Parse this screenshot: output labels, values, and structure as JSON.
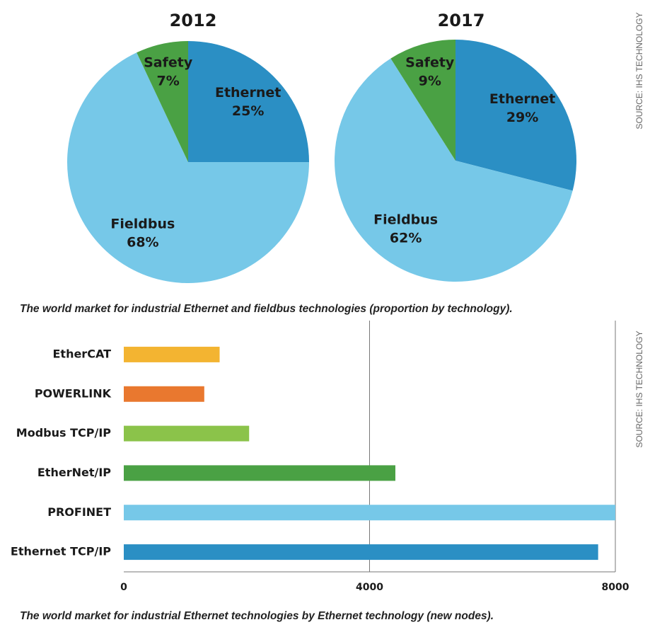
{
  "chart_data": [
    {
      "type": "pie",
      "title": "2012",
      "categories": [
        "Ethernet",
        "Fieldbus",
        "Safety"
      ],
      "values": [
        25,
        68,
        7
      ],
      "value_labels": [
        "25%",
        "68%",
        "7%"
      ],
      "colors": [
        "#2b8fc4",
        "#76c8e8",
        "#4aa144"
      ]
    },
    {
      "type": "pie",
      "title": "2017",
      "categories": [
        "Ethernet",
        "Fieldbus",
        "Safety"
      ],
      "values": [
        29,
        62,
        9
      ],
      "value_labels": [
        "29%",
        "62%",
        "9%"
      ],
      "colors": [
        "#2b8fc4",
        "#76c8e8",
        "#4aa144"
      ],
      "caption": "The world market for industrial Ethernet and fieldbus technologies (proportion by technology).",
      "source": "SOURCE: IHS TECHNOLOGY"
    },
    {
      "type": "bar",
      "orientation": "horizontal",
      "categories": [
        "EtherCAT",
        "POWERLINK",
        "Modbus TCP/IP",
        "EtherNet/IP",
        "PROFINET",
        "Ethernet TCP/IP"
      ],
      "values": [
        1560,
        1310,
        2040,
        4420,
        8000,
        7720
      ],
      "colors": [
        "#f3b431",
        "#e9782f",
        "#8bc34a",
        "#4aa144",
        "#76c8e8",
        "#2b8fc4"
      ],
      "xlim": [
        0,
        8000
      ],
      "xticks": [
        0,
        4000,
        8000
      ],
      "grid": true,
      "caption": "The world market for industrial Ethernet technologies by Ethernet technology (new nodes).",
      "source": "SOURCE: IHS TECHNOLOGY"
    }
  ]
}
